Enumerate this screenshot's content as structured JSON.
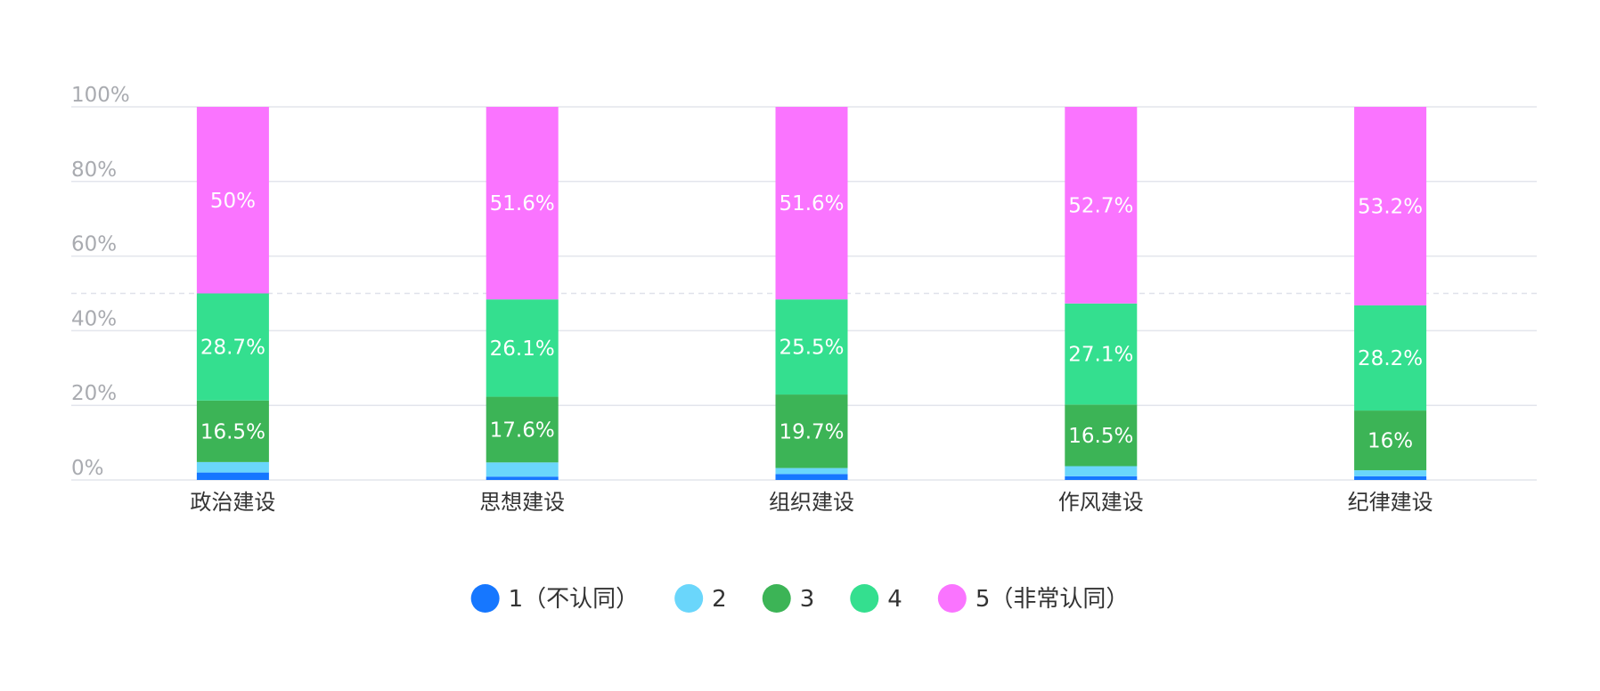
{
  "chart_data": {
    "type": "bar",
    "stacked": true,
    "normalized": true,
    "categories": [
      "政治建设",
      "思想建设",
      "组织建设",
      "作风建设",
      "纪律建设"
    ],
    "series": [
      {
        "name": "1（不认同）",
        "color": "#1677ff",
        "values": [
          2.0,
          0.9,
          1.6,
          1.0,
          1.0
        ],
        "labels": [
          "",
          "",
          "",
          "",
          ""
        ]
      },
      {
        "name": "2",
        "color": "#6ad6fb",
        "values": [
          2.8,
          3.8,
          1.6,
          2.7,
          1.6
        ],
        "labels": [
          "",
          "",
          "",
          "",
          ""
        ]
      },
      {
        "name": "3",
        "color": "#3cb456",
        "values": [
          16.5,
          17.6,
          19.7,
          16.5,
          16.0
        ],
        "labels": [
          "16.5%",
          "17.6%",
          "19.7%",
          "16.5%",
          "16%"
        ]
      },
      {
        "name": "4",
        "color": "#34df8f",
        "values": [
          28.7,
          26.1,
          25.5,
          27.1,
          28.2
        ],
        "labels": [
          "28.7%",
          "26.1%",
          "25.5%",
          "27.1%",
          "28.2%"
        ]
      },
      {
        "name": "5（非常认同）",
        "color": "#fa74ff",
        "values": [
          50.0,
          51.6,
          51.6,
          52.7,
          53.2
        ],
        "labels": [
          "50%",
          "51.6%",
          "51.6%",
          "52.7%",
          "53.2%"
        ]
      }
    ],
    "y_ticks": [
      "0%",
      "20%",
      "40%",
      "60%",
      "80%",
      "100%"
    ],
    "ylim": [
      0,
      100
    ],
    "reference_line": 50,
    "grid": true,
    "legend_position": "bottom"
  }
}
